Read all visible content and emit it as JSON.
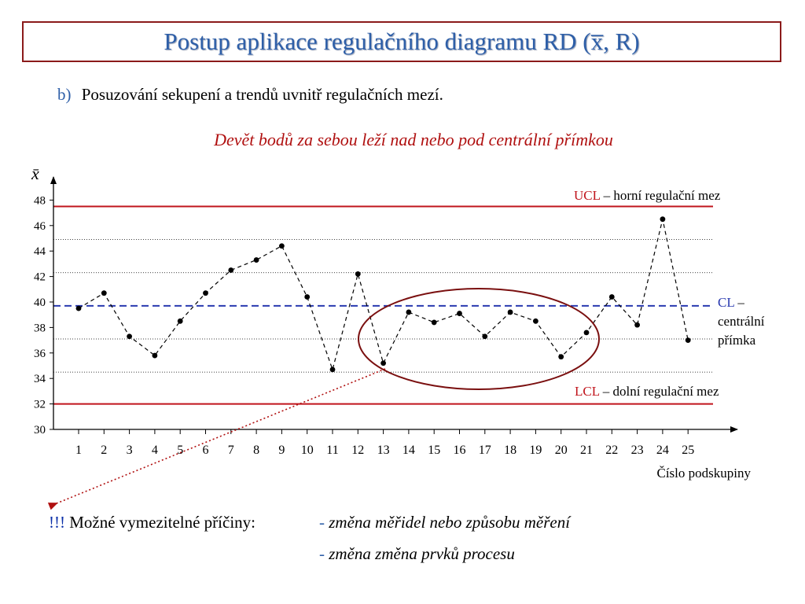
{
  "title": "Postup aplikace regulačního diagramu RD (x̅, R)",
  "bullet": {
    "marker": "b)",
    "text": "Posuzování sekupení a trendů uvnitř regulačních mezí."
  },
  "subtitle": "Devět bodů za sebou leží nad nebo pod centrální přímkou",
  "annotations": {
    "ucl_abbr": "UCL",
    "ucl_text": " – horní regulační mez",
    "cl_abbr": "CL",
    "cl_text1": " –",
    "cl_text2": "centrální",
    "cl_text3": "přímka",
    "lcl_abbr": "LCL",
    "lcl_text": " – dolní regulační mez"
  },
  "causes": {
    "excl": "!!!",
    "label": " Možné vymezitelné příčiny:",
    "dash": "- ",
    "items": [
      "změna měřidel nebo způsobu měření",
      "změna změna prvků procesu"
    ]
  },
  "colors": {
    "limit": "#c0141c",
    "center": "#2a3ab0",
    "ellipse": "#7a0f0f",
    "title": "#2e5fa8"
  },
  "chart_data": {
    "type": "line",
    "ylabel": "x̄",
    "xlabel": "Číslo podskupiny",
    "x": [
      1,
      2,
      3,
      4,
      5,
      6,
      7,
      8,
      9,
      10,
      11,
      12,
      13,
      14,
      15,
      16,
      17,
      18,
      19,
      20,
      21,
      22,
      23,
      24,
      25
    ],
    "y": [
      39.5,
      40.7,
      37.3,
      35.8,
      38.5,
      40.7,
      42.5,
      43.3,
      44.4,
      40.4,
      34.7,
      42.2,
      35.2,
      39.2,
      38.4,
      39.1,
      37.3,
      39.2,
      38.5,
      35.7,
      37.6,
      40.4,
      38.2,
      46.5,
      37.0
    ],
    "ylim": [
      30,
      49
    ],
    "yticks": [
      30,
      32,
      34,
      36,
      38,
      40,
      42,
      44,
      46,
      48
    ],
    "ucl": 47.5,
    "cl": 39.7,
    "lcl": 32.0,
    "zone_lines": [
      34.5,
      37.1,
      42.3,
      44.9
    ],
    "highlight_points": [
      13,
      22
    ]
  }
}
